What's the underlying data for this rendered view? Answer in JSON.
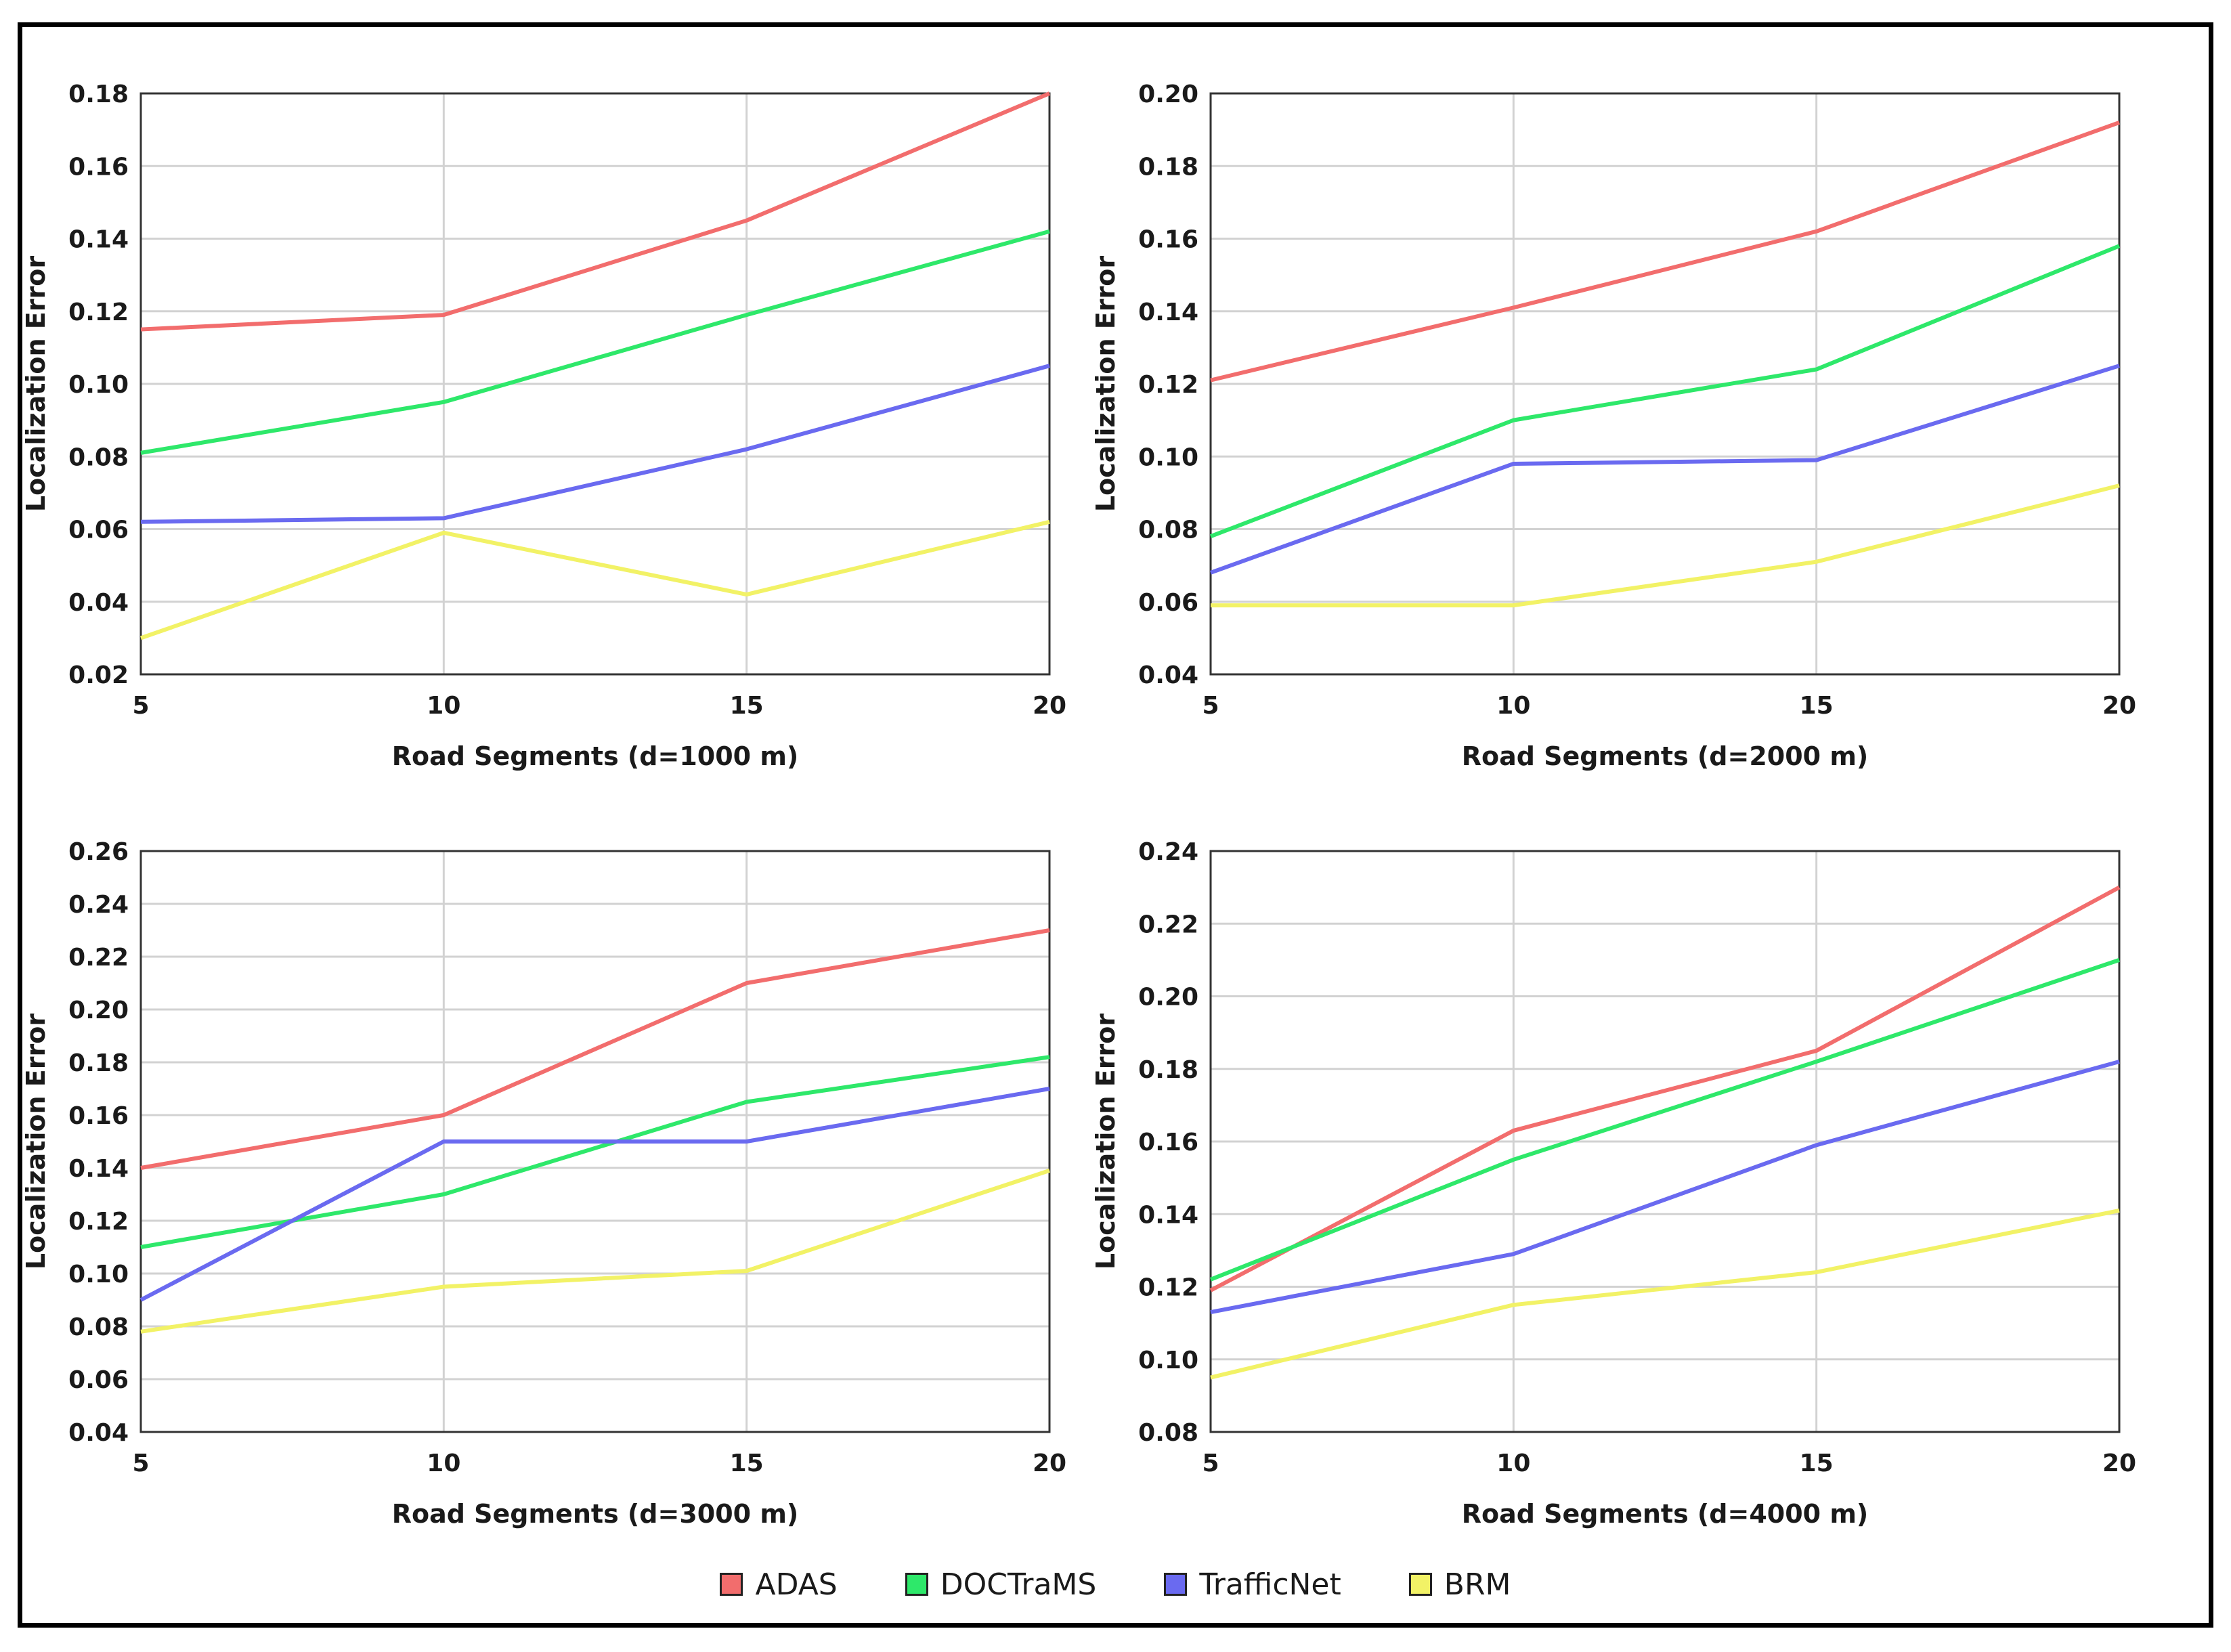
{
  "chart_data": [
    {
      "type": "line",
      "categories": [
        5,
        10,
        15,
        20
      ],
      "xlabel": "Road Segments (d=1000 m)",
      "ylabel": "Localization Error",
      "ylim": [
        0.02,
        0.18
      ],
      "yticks": [
        "0.02",
        "0.04",
        "0.06",
        "0.08",
        "0.10",
        "0.12",
        "0.14",
        "0.16",
        "0.18"
      ],
      "series": [
        {
          "name": "ADAS",
          "values": [
            0.115,
            0.119,
            0.145,
            0.18
          ]
        },
        {
          "name": "DOCTraMS",
          "values": [
            0.081,
            0.095,
            0.119,
            0.142
          ]
        },
        {
          "name": "TrafficNet",
          "values": [
            0.062,
            0.063,
            0.082,
            0.105
          ]
        },
        {
          "name": "BRM",
          "values": [
            0.03,
            0.059,
            0.042,
            0.062
          ]
        }
      ]
    },
    {
      "type": "line",
      "categories": [
        5,
        10,
        15,
        20
      ],
      "xlabel": "Road Segments (d=2000 m)",
      "ylabel": "Localization Error",
      "ylim": [
        0.04,
        0.2
      ],
      "yticks": [
        "0.04",
        "0.06",
        "0.08",
        "0.10",
        "0.12",
        "0.14",
        "0.16",
        "0.18",
        "0.20"
      ],
      "series": [
        {
          "name": "ADAS",
          "values": [
            0.121,
            0.141,
            0.162,
            0.192
          ]
        },
        {
          "name": "DOCTraMS",
          "values": [
            0.078,
            0.11,
            0.124,
            0.158
          ]
        },
        {
          "name": "TrafficNet",
          "values": [
            0.068,
            0.098,
            0.099,
            0.125
          ]
        },
        {
          "name": "BRM",
          "values": [
            0.059,
            0.059,
            0.071,
            0.092
          ]
        }
      ]
    },
    {
      "type": "line",
      "categories": [
        5,
        10,
        15,
        20
      ],
      "xlabel": "Road Segments (d=3000 m)",
      "ylabel": "Localization Error",
      "ylim": [
        0.04,
        0.26
      ],
      "yticks": [
        "0.04",
        "0.06",
        "0.08",
        "0.10",
        "0.12",
        "0.14",
        "0.16",
        "0.18",
        "0.20",
        "0.22",
        "0.24",
        "0.26"
      ],
      "series": [
        {
          "name": "ADAS",
          "values": [
            0.14,
            0.16,
            0.21,
            0.23
          ]
        },
        {
          "name": "DOCTraMS",
          "values": [
            0.11,
            0.13,
            0.165,
            0.182
          ]
        },
        {
          "name": "TrafficNet",
          "values": [
            0.09,
            0.15,
            0.15,
            0.17
          ]
        },
        {
          "name": "BRM",
          "values": [
            0.078,
            0.095,
            0.101,
            0.139
          ]
        }
      ]
    },
    {
      "type": "line",
      "categories": [
        5,
        10,
        15,
        20
      ],
      "xlabel": "Road Segments (d=4000 m)",
      "ylabel": "Localization Error",
      "ylim": [
        0.08,
        0.24
      ],
      "yticks": [
        "0.08",
        "0.10",
        "0.12",
        "0.14",
        "0.16",
        "0.18",
        "0.20",
        "0.22",
        "0.24"
      ],
      "series": [
        {
          "name": "ADAS",
          "values": [
            0.119,
            0.163,
            0.185,
            0.23
          ]
        },
        {
          "name": "DOCTraMS",
          "values": [
            0.122,
            0.155,
            0.182,
            0.21
          ]
        },
        {
          "name": "TrafficNet",
          "values": [
            0.113,
            0.129,
            0.159,
            0.182
          ]
        },
        {
          "name": "BRM",
          "values": [
            0.095,
            0.115,
            0.124,
            0.141
          ]
        }
      ]
    }
  ],
  "legend": [
    {
      "name": "ADAS",
      "color": "#f26d6d"
    },
    {
      "name": "DOCTraMS",
      "color": "#2ee86a"
    },
    {
      "name": "TrafficNet",
      "color": "#6a6af0"
    },
    {
      "name": "BRM",
      "color": "#f2f266"
    }
  ]
}
